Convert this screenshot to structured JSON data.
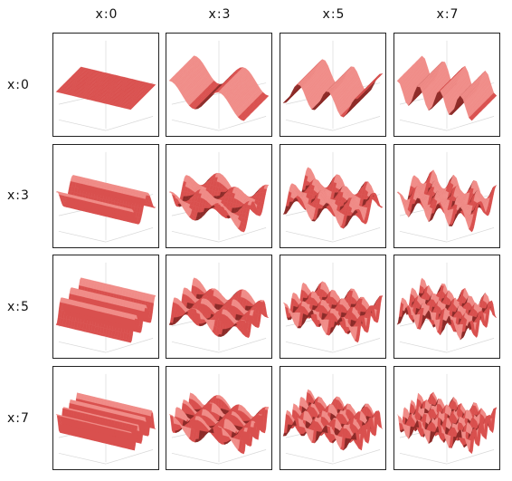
{
  "col_labels": [
    "x:0",
    "x:3",
    "x:5",
    "x:7"
  ],
  "row_labels": [
    "x:0",
    "x:3",
    "x:5",
    "x:7"
  ],
  "frequencies": [
    0,
    3,
    5,
    7
  ],
  "colors": {
    "surface": "#d9504e",
    "surface_light": "#f08c88",
    "surface_dark": "#8c2a28",
    "grid": "#d8d8d8",
    "border": "#222222"
  }
}
